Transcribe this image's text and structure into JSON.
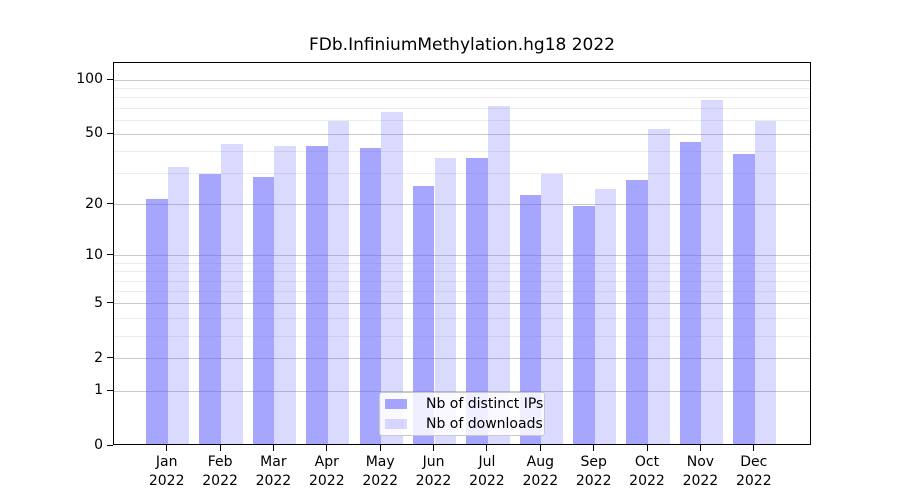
{
  "title": "FDb.InfiniumMethylation.hg18 2022",
  "chart_data": {
    "type": "bar",
    "title": "FDb.InfiniumMethylation.hg18 2022",
    "categories": [
      "Jan",
      "Feb",
      "Mar",
      "Apr",
      "May",
      "Jun",
      "Jul",
      "Aug",
      "Sep",
      "Oct",
      "Nov",
      "Dec"
    ],
    "category_year": "2022",
    "series": [
      {
        "name": "Nb of distinct IPs",
        "color": "rgba(102,102,255,0.58)",
        "values": [
          21,
          29,
          28,
          42,
          41,
          25,
          36,
          22,
          19,
          27,
          44,
          38
        ]
      },
      {
        "name": "Nb of downloads",
        "color": "rgba(102,102,255,0.24)",
        "values": [
          32,
          43,
          42,
          58,
          65,
          36,
          70,
          29,
          24,
          52,
          76,
          58
        ]
      }
    ],
    "xlabel": "",
    "ylabel": "",
    "y_axis": {
      "scale": "log1p",
      "ticks": [
        0,
        1,
        2,
        5,
        10,
        20,
        50,
        100
      ],
      "top_value": 124
    },
    "grid": {
      "major_values": [
        1,
        2,
        5,
        10,
        20,
        50,
        100
      ],
      "minor_values": [
        3,
        4,
        6,
        7,
        8,
        9,
        30,
        40,
        60,
        70,
        80,
        90
      ],
      "major_color": "#c9c9c9",
      "minor_color": "#ececec"
    },
    "legend_position": "bottom-center"
  }
}
